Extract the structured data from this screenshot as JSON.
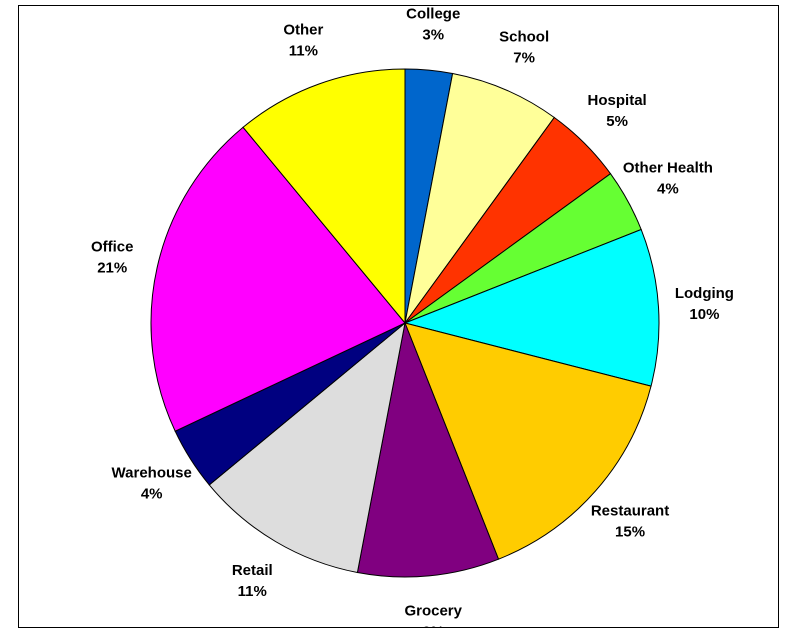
{
  "chart_data": {
    "type": "pie",
    "categories": [
      "College",
      "School",
      "Hospital",
      "Other Health",
      "Lodging",
      "Restaurant",
      "Grocery",
      "Retail",
      "Warehouse",
      "Office",
      "Other"
    ],
    "values": [
      3,
      7,
      5,
      4,
      10,
      15,
      9,
      11,
      4,
      21,
      11
    ],
    "value_labels": [
      "3%",
      "7%",
      "5%",
      "4%",
      "10%",
      "15%",
      "9%",
      "11%",
      "4%",
      "21%",
      "11%"
    ],
    "colors": [
      "#0066cc",
      "#ffff99",
      "#ff3300",
      "#66ff33",
      "#00ffff",
      "#ffcc00",
      "#800080",
      "#dddddd",
      "#000080",
      "#ff00ff",
      "#ffff00"
    ]
  }
}
